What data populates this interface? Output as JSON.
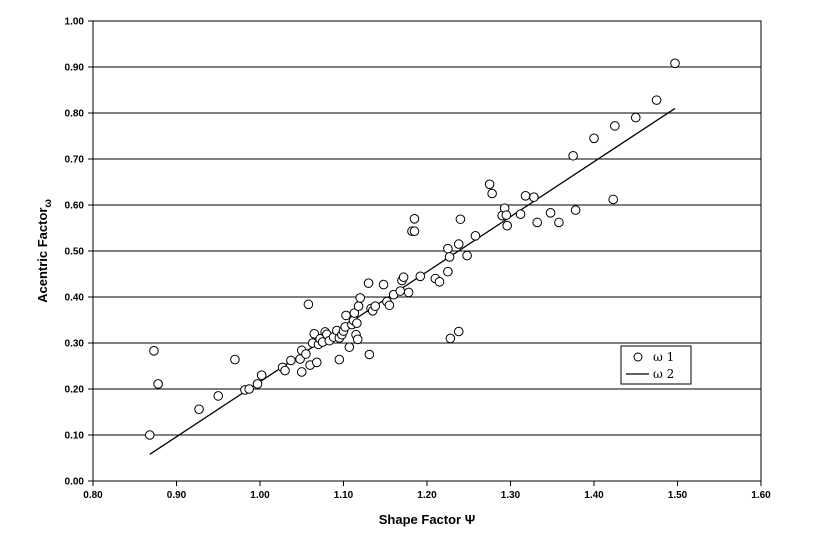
{
  "chart_data": {
    "type": "scatter",
    "xlabel": "Shape Factor Ψ",
    "ylabel": "Acentric Factor",
    "ylabel_subscript": "ω",
    "xlim": [
      0.8,
      1.6
    ],
    "ylim": [
      0.0,
      1.0
    ],
    "x_ticks": [
      "0.80",
      "0.90",
      "1.00",
      "1.10",
      "1.20",
      "1.30",
      "1.40",
      "1.50",
      "1.60"
    ],
    "y_ticks": [
      "0.00",
      "0.10",
      "0.20",
      "0.30",
      "0.40",
      "0.50",
      "0.60",
      "0.70",
      "0.80",
      "0.90",
      "1.00"
    ],
    "grid": "horizontal",
    "legend_placement": "right-middle",
    "series": [
      {
        "name": "ω 1",
        "marker": "circle-open",
        "points": [
          [
            0.868,
            0.1
          ],
          [
            0.873,
            0.283
          ],
          [
            0.878,
            0.211
          ],
          [
            0.927,
            0.156
          ],
          [
            0.95,
            0.185
          ],
          [
            0.97,
            0.264
          ],
          [
            0.982,
            0.198
          ],
          [
            0.987,
            0.2
          ],
          [
            0.997,
            0.211
          ],
          [
            1.002,
            0.23
          ],
          [
            1.027,
            0.247
          ],
          [
            1.03,
            0.24
          ],
          [
            1.037,
            0.262
          ],
          [
            1.048,
            0.265
          ],
          [
            1.05,
            0.237
          ],
          [
            1.05,
            0.284
          ],
          [
            1.055,
            0.276
          ],
          [
            1.058,
            0.384
          ],
          [
            1.06,
            0.252
          ],
          [
            1.063,
            0.3
          ],
          [
            1.065,
            0.32
          ],
          [
            1.068,
            0.258
          ],
          [
            1.07,
            0.297
          ],
          [
            1.072,
            0.309
          ],
          [
            1.075,
            0.302
          ],
          [
            1.078,
            0.324
          ],
          [
            1.08,
            0.319
          ],
          [
            1.083,
            0.305
          ],
          [
            1.088,
            0.313
          ],
          [
            1.092,
            0.327
          ],
          [
            1.095,
            0.311
          ],
          [
            1.095,
            0.264
          ],
          [
            1.098,
            0.318
          ],
          [
            1.1,
            0.326
          ],
          [
            1.102,
            0.335
          ],
          [
            1.103,
            0.36
          ],
          [
            1.107,
            0.291
          ],
          [
            1.11,
            0.34
          ],
          [
            1.112,
            0.349
          ],
          [
            1.113,
            0.365
          ],
          [
            1.115,
            0.318
          ],
          [
            1.116,
            0.343
          ],
          [
            1.117,
            0.308
          ],
          [
            1.118,
            0.38
          ],
          [
            1.12,
            0.398
          ],
          [
            1.13,
            0.43
          ],
          [
            1.131,
            0.275
          ],
          [
            1.133,
            0.375
          ],
          [
            1.135,
            0.37
          ],
          [
            1.138,
            0.38
          ],
          [
            1.148,
            0.427
          ],
          [
            1.152,
            0.39
          ],
          [
            1.155,
            0.382
          ],
          [
            1.16,
            0.405
          ],
          [
            1.168,
            0.413
          ],
          [
            1.17,
            0.436
          ],
          [
            1.172,
            0.443
          ],
          [
            1.178,
            0.41
          ],
          [
            1.182,
            0.543
          ],
          [
            1.185,
            0.57
          ],
          [
            1.185,
            0.543
          ],
          [
            1.192,
            0.445
          ],
          [
            1.21,
            0.44
          ],
          [
            1.215,
            0.433
          ],
          [
            1.225,
            0.455
          ],
          [
            1.225,
            0.505
          ],
          [
            1.227,
            0.487
          ],
          [
            1.228,
            0.31
          ],
          [
            1.238,
            0.325
          ],
          [
            1.238,
            0.515
          ],
          [
            1.24,
            0.569
          ],
          [
            1.248,
            0.49
          ],
          [
            1.258,
            0.533
          ],
          [
            1.275,
            0.645
          ],
          [
            1.278,
            0.625
          ],
          [
            1.29,
            0.577
          ],
          [
            1.293,
            0.593
          ],
          [
            1.295,
            0.578
          ],
          [
            1.296,
            0.555
          ],
          [
            1.312,
            0.58
          ],
          [
            1.318,
            0.62
          ],
          [
            1.328,
            0.617
          ],
          [
            1.332,
            0.562
          ],
          [
            1.348,
            0.583
          ],
          [
            1.358,
            0.562
          ],
          [
            1.375,
            0.707
          ],
          [
            1.378,
            0.589
          ],
          [
            1.4,
            0.745
          ],
          [
            1.423,
            0.612
          ],
          [
            1.425,
            0.772
          ],
          [
            1.45,
            0.79
          ],
          [
            1.475,
            0.828
          ],
          [
            1.497,
            0.908
          ]
        ]
      },
      {
        "name": "ω 2",
        "marker": "line",
        "points": [
          [
            0.868,
            0.058
          ],
          [
            1.497,
            0.81
          ]
        ]
      }
    ]
  }
}
